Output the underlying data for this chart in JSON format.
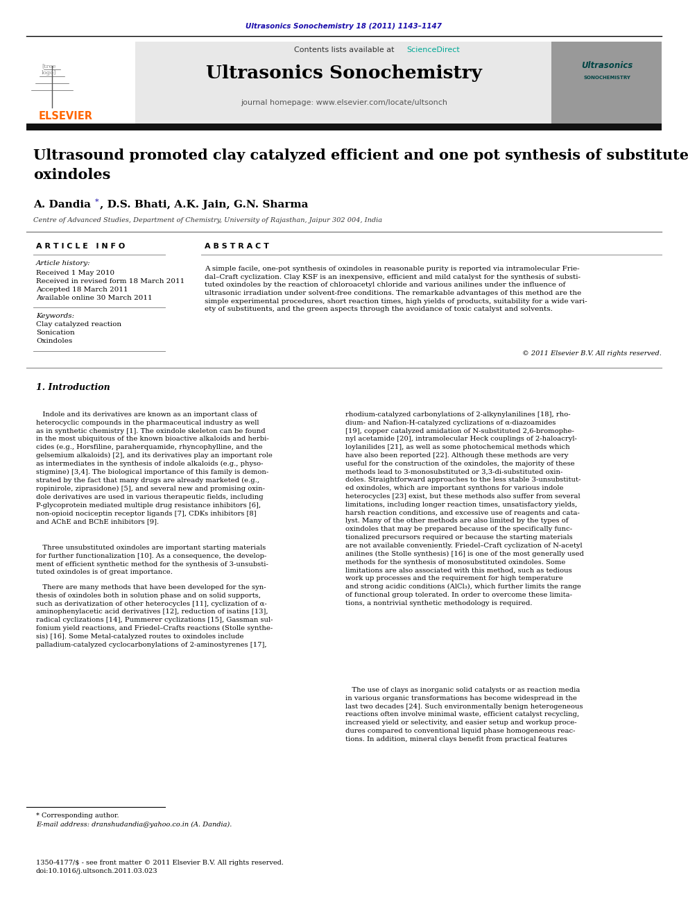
{
  "journal_ref": "Ultrasonics Sonochemistry 18 (2011) 1143–1147",
  "journal_ref_color": "#1a0dab",
  "contents_line": "Contents lists available at",
  "sciencedirect": "ScienceDirect",
  "sciencedirect_color": "#00a896",
  "journal_name": "Ultrasonics Sonochemistry",
  "journal_homepage": "journal homepage: www.elsevier.com/locate/ultsonch",
  "title": "Ultrasound promoted clay catalyzed efficient and one pot synthesis of substituted\noxindoles",
  "affiliation": "Centre of Advanced Studies, Department of Chemistry, University of Rajasthan, Jaipur 302 004, India",
  "article_info_header": "A R T I C L E   I N F O",
  "abstract_header": "A B S T R A C T",
  "article_history_label": "Article history:",
  "received1": "Received 1 May 2010",
  "received_revised": "Received in revised form 18 March 2011",
  "accepted": "Accepted 18 March 2011",
  "available": "Available online 30 March 2011",
  "keywords_label": "Keywords:",
  "keyword1": "Clay catalyzed reaction",
  "keyword2": "Sonication",
  "keyword3": "Oxindoles",
  "abstract_text": "A simple facile, one-pot synthesis of oxindoles in reasonable purity is reported via intramolecular Frie-\ndal–Craft cyclization. Clay KSF is an inexpensive, efficient and mild catalyst for the synthesis of substi-\ntuted oxindoles by the reaction of chloroacetyl chloride and various anilines under the influence of\nultrasonic irradiation under solvent-free conditions. The remarkable advantages of this method are the\nsimple experimental procedures, short reaction times, high yields of products, suitability for a wide vari-\nety of substituents, and the green aspects through the avoidance of toxic catalyst and solvents.",
  "copyright": "© 2011 Elsevier B.V. All rights reserved.",
  "intro_header": "1. Introduction",
  "intro_col1_p1": "   Indole and its derivatives are known as an important class of\nheterocyclic compounds in the pharmaceutical industry as well\nas in synthetic chemistry [1]. The oxindole skeleton can be found\nin the most ubiquitous of the known bioactive alkaloids and herbi-\ncides (e.g., Horsfiline, paraherquamide, rhyncophylline, and the\ngelsemium alkaloids) [2], and its derivatives play an important role\nas intermediates in the synthesis of indole alkaloids (e.g., physo-\nstigmine) [3,4]. The biological importance of this family is demon-\nstrated by the fact that many drugs are already marketed (e.g.,\nropinirole, ziprasidone) [5], and several new and promising oxin-\ndole derivatives are used in various therapeutic fields, including\nP-glycoprotein mediated multiple drug resistance inhibitors [6],\nnon-opioid nociceptin receptor ligands [7], CDKs inhibitors [8]\nand AChE and BChE inhibitors [9].",
  "intro_col1_p2": "   Three unsubstituted oxindoles are important starting materials\nfor further functionalization [10]. As a consequence, the develop-\nment of efficient synthetic method for the synthesis of 3-unsubsti-\ntuted oxindoles is of great importance.",
  "intro_col1_p3": "   There are many methods that have been developed for the syn-\nthesis of oxindoles both in solution phase and on solid supports,\nsuch as derivatization of other heterocycles [11], cyclization of α-\naminophenylacetic acid derivatives [12], reduction of isatins [13],\nradical cyclizations [14], Pummerer cyclizations [15], Gassman sul-\nfonium yield reactions, and Friedel–Crafts reactions (Stolle synthe-\nsis) [16]. Some Metal-catalyzed routes to oxindoles include\npalladium-catalyzed cyclocarbonylations of 2-aminostyrenes [17],",
  "intro_col2_p1": "rhodium-catalyzed carbonylations of 2-alkynylanilines [18], rho-\ndium- and Nafion-H-catalyzed cyclizations of α-diazoamides\n[19], copper catalyzed amidation of N-substituted 2,6-bromophe-\nnyl acetamide [20], intramolecular Heck couplings of 2-haloacryl-\nloylanilides [21], as well as some photochemical methods which\nhave also been reported [22]. Although these methods are very\nuseful for the construction of the oxindoles, the majority of these\nmethods lead to 3-monosubstituted or 3,3-di-substituted oxin-\ndoles. Straightforward approaches to the less stable 3-unsubstitut-\ned oxindoles, which are important synthons for various indole\nheterocycles [23] exist, but these methods also suffer from several\nlimitations, including longer reaction times, unsatisfactory yields,\nharsh reaction conditions, and excessive use of reagents and cata-\nlyst. Many of the other methods are also limited by the types of\noxindoles that may be prepared because of the specifically func-\ntionalized precursors required or because the starting materials\nare not available conveniently. Friedel–Craft cyclization of N-acetyl\nanilines (the Stolle synthesis) [16] is one of the most generally used\nmethods for the synthesis of monosubstituted oxindoles. Some\nlimitations are also associated with this method, such as tedious\nwork up processes and the requirement for high temperature\nand strong acidic conditions (AlCl₃), which further limits the range\nof functional group tolerated. In order to overcome these limita-\ntions, a nontrivial synthetic methodology is required.",
  "intro_col2_p2": "   The use of clays as inorganic solid catalysts or as reaction media\nin various organic transformations has become widespread in the\nlast two decades [24]. Such environmentally benign heterogeneous\nreactions often involve minimal waste, efficient catalyst recycling,\nincreased yield or selectivity, and easier setup and workup proce-\ndures compared to conventional liquid phase homogeneous reac-\ntions. In addition, mineral clays benefit from practical features",
  "footnote1": "* Corresponding author.",
  "footnote2": "E-mail address: dranshudandia@yahoo.co.in (A. Dandia).",
  "footer1": "1350-4177/$ - see front matter © 2011 Elsevier B.V. All rights reserved.",
  "footer2": "doi:10.1016/j.ultsonch.2011.03.023",
  "elsevier_color": "#ff6600",
  "header_bg": "#e8e8e8",
  "dark_bar_color": "#111111",
  "ref_color": "#1a0dab"
}
